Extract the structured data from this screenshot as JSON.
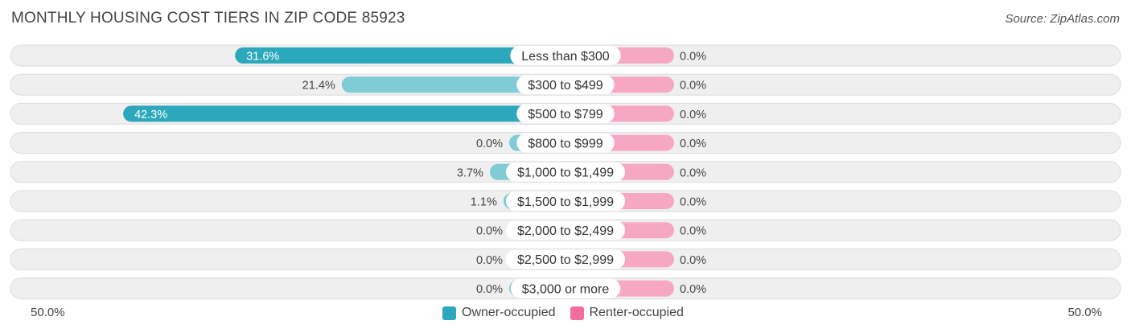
{
  "header": {
    "title": "MONTHLY HOUSING COST TIERS IN ZIP CODE 85923",
    "source": "Source: ZipAtlas.com"
  },
  "colors": {
    "owner_strong": "#2ba8bb",
    "owner_light": "#7fccd6",
    "renter": "#f6a8c3",
    "renter_legend": "#ef6f9a",
    "track_bg": "#efefef",
    "track_border": "#dcdcdc"
  },
  "chart_data": {
    "type": "bar",
    "orientation": "diverging-horizontal",
    "title": "MONTHLY HOUSING COST TIERS IN ZIP CODE 85923",
    "categories": [
      "Less than $300",
      "$300 to $499",
      "$500 to $799",
      "$800 to $999",
      "$1,000 to $1,499",
      "$1,500 to $1,999",
      "$2,000 to $2,499",
      "$2,500 to $2,999",
      "$3,000 or more"
    ],
    "series": [
      {
        "name": "Owner-occupied",
        "values": [
          31.6,
          21.4,
          42.3,
          0.0,
          3.7,
          1.1,
          0.0,
          0.0,
          0.0
        ],
        "labels": [
          "31.6%",
          "21.4%",
          "42.3%",
          "0.0%",
          "3.7%",
          "1.1%",
          "0.0%",
          "0.0%",
          "0.0%"
        ]
      },
      {
        "name": "Renter-occupied",
        "values": [
          0.0,
          0.0,
          0.0,
          0.0,
          0.0,
          0.0,
          0.0,
          0.0,
          0.0
        ],
        "labels": [
          "0.0%",
          "0.0%",
          "0.0%",
          "0.0%",
          "0.0%",
          "0.0%",
          "0.0%",
          "0.0%",
          "0.0%"
        ]
      }
    ],
    "xlim": [
      -50,
      50
    ],
    "axis_labels": {
      "left": "50.0%",
      "right": "50.0%"
    },
    "legend_placement": "bottom-center"
  }
}
